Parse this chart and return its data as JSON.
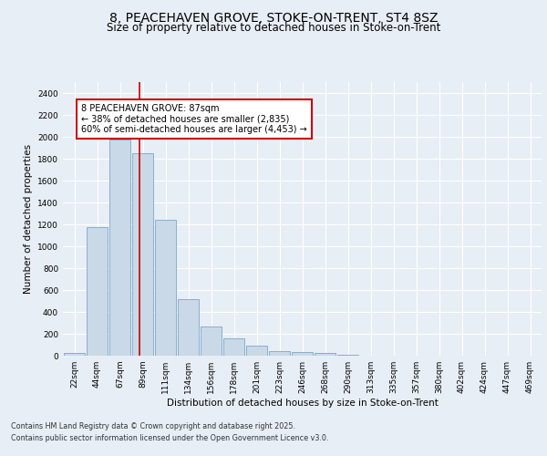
{
  "title_line1": "8, PEACEHAVEN GROVE, STOKE-ON-TRENT, ST4 8SZ",
  "title_line2": "Size of property relative to detached houses in Stoke-on-Trent",
  "xlabel": "Distribution of detached houses by size in Stoke-on-Trent",
  "ylabel": "Number of detached properties",
  "categories": [
    "22sqm",
    "44sqm",
    "67sqm",
    "89sqm",
    "111sqm",
    "134sqm",
    "156sqm",
    "178sqm",
    "201sqm",
    "223sqm",
    "246sqm",
    "268sqm",
    "290sqm",
    "313sqm",
    "335sqm",
    "357sqm",
    "380sqm",
    "402sqm",
    "424sqm",
    "447sqm",
    "469sqm"
  ],
  "values": [
    25,
    1175,
    1975,
    1850,
    1245,
    515,
    270,
    158,
    93,
    45,
    35,
    25,
    8,
    3,
    2,
    1,
    1,
    0,
    0,
    0,
    0
  ],
  "bar_color": "#c9d9e8",
  "bar_edge_color": "#7aa8c8",
  "vline_color": "#cc0000",
  "annotation_text": "8 PEACEHAVEN GROVE: 87sqm\n← 38% of detached houses are smaller (2,835)\n60% of semi-detached houses are larger (4,453) →",
  "annotation_box_color": "#ffffff",
  "annotation_box_edge": "#cc0000",
  "ylim": [
    0,
    2500
  ],
  "yticks": [
    0,
    200,
    400,
    600,
    800,
    1000,
    1200,
    1400,
    1600,
    1800,
    2000,
    2200,
    2400
  ],
  "bg_color": "#e8eef5",
  "plot_bg": "#e8eef5",
  "footer_line1": "Contains HM Land Registry data © Crown copyright and database right 2025.",
  "footer_line2": "Contains public sector information licensed under the Open Government Licence v3.0.",
  "title_fontsize": 10,
  "subtitle_fontsize": 8.5,
  "axis_label_fontsize": 7.5,
  "tick_fontsize": 6.5,
  "annotation_fontsize": 7,
  "footer_fontsize": 5.8
}
